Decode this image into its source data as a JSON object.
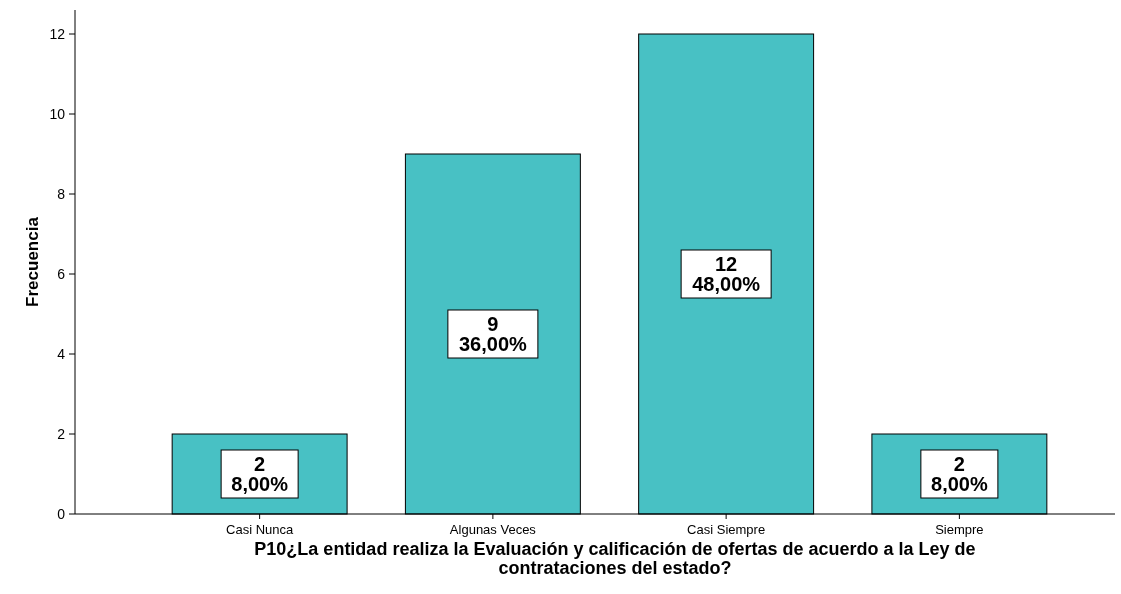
{
  "chart_data": {
    "type": "bar",
    "xlabel": "P10¿La entidad realiza la Evaluación y calificación de ofertas de acuerdo a la Ley de contrataciones del estado?",
    "ylabel": "Frecuencia",
    "categories": [
      "Casi Nunca",
      "Algunas Veces",
      "Casi Siempre",
      "Siempre"
    ],
    "values": [
      2,
      9,
      12,
      2
    ],
    "color": "#48c1c4",
    "value_labels": [
      "2\n8,00%",
      "9\n36,00%",
      "12\n48,00%",
      "2\n8,00%"
    ],
    "ylim": [
      0,
      12.6
    ],
    "yticks": [
      0,
      2,
      4,
      6,
      8,
      10,
      12
    ],
    "grid": false
  }
}
